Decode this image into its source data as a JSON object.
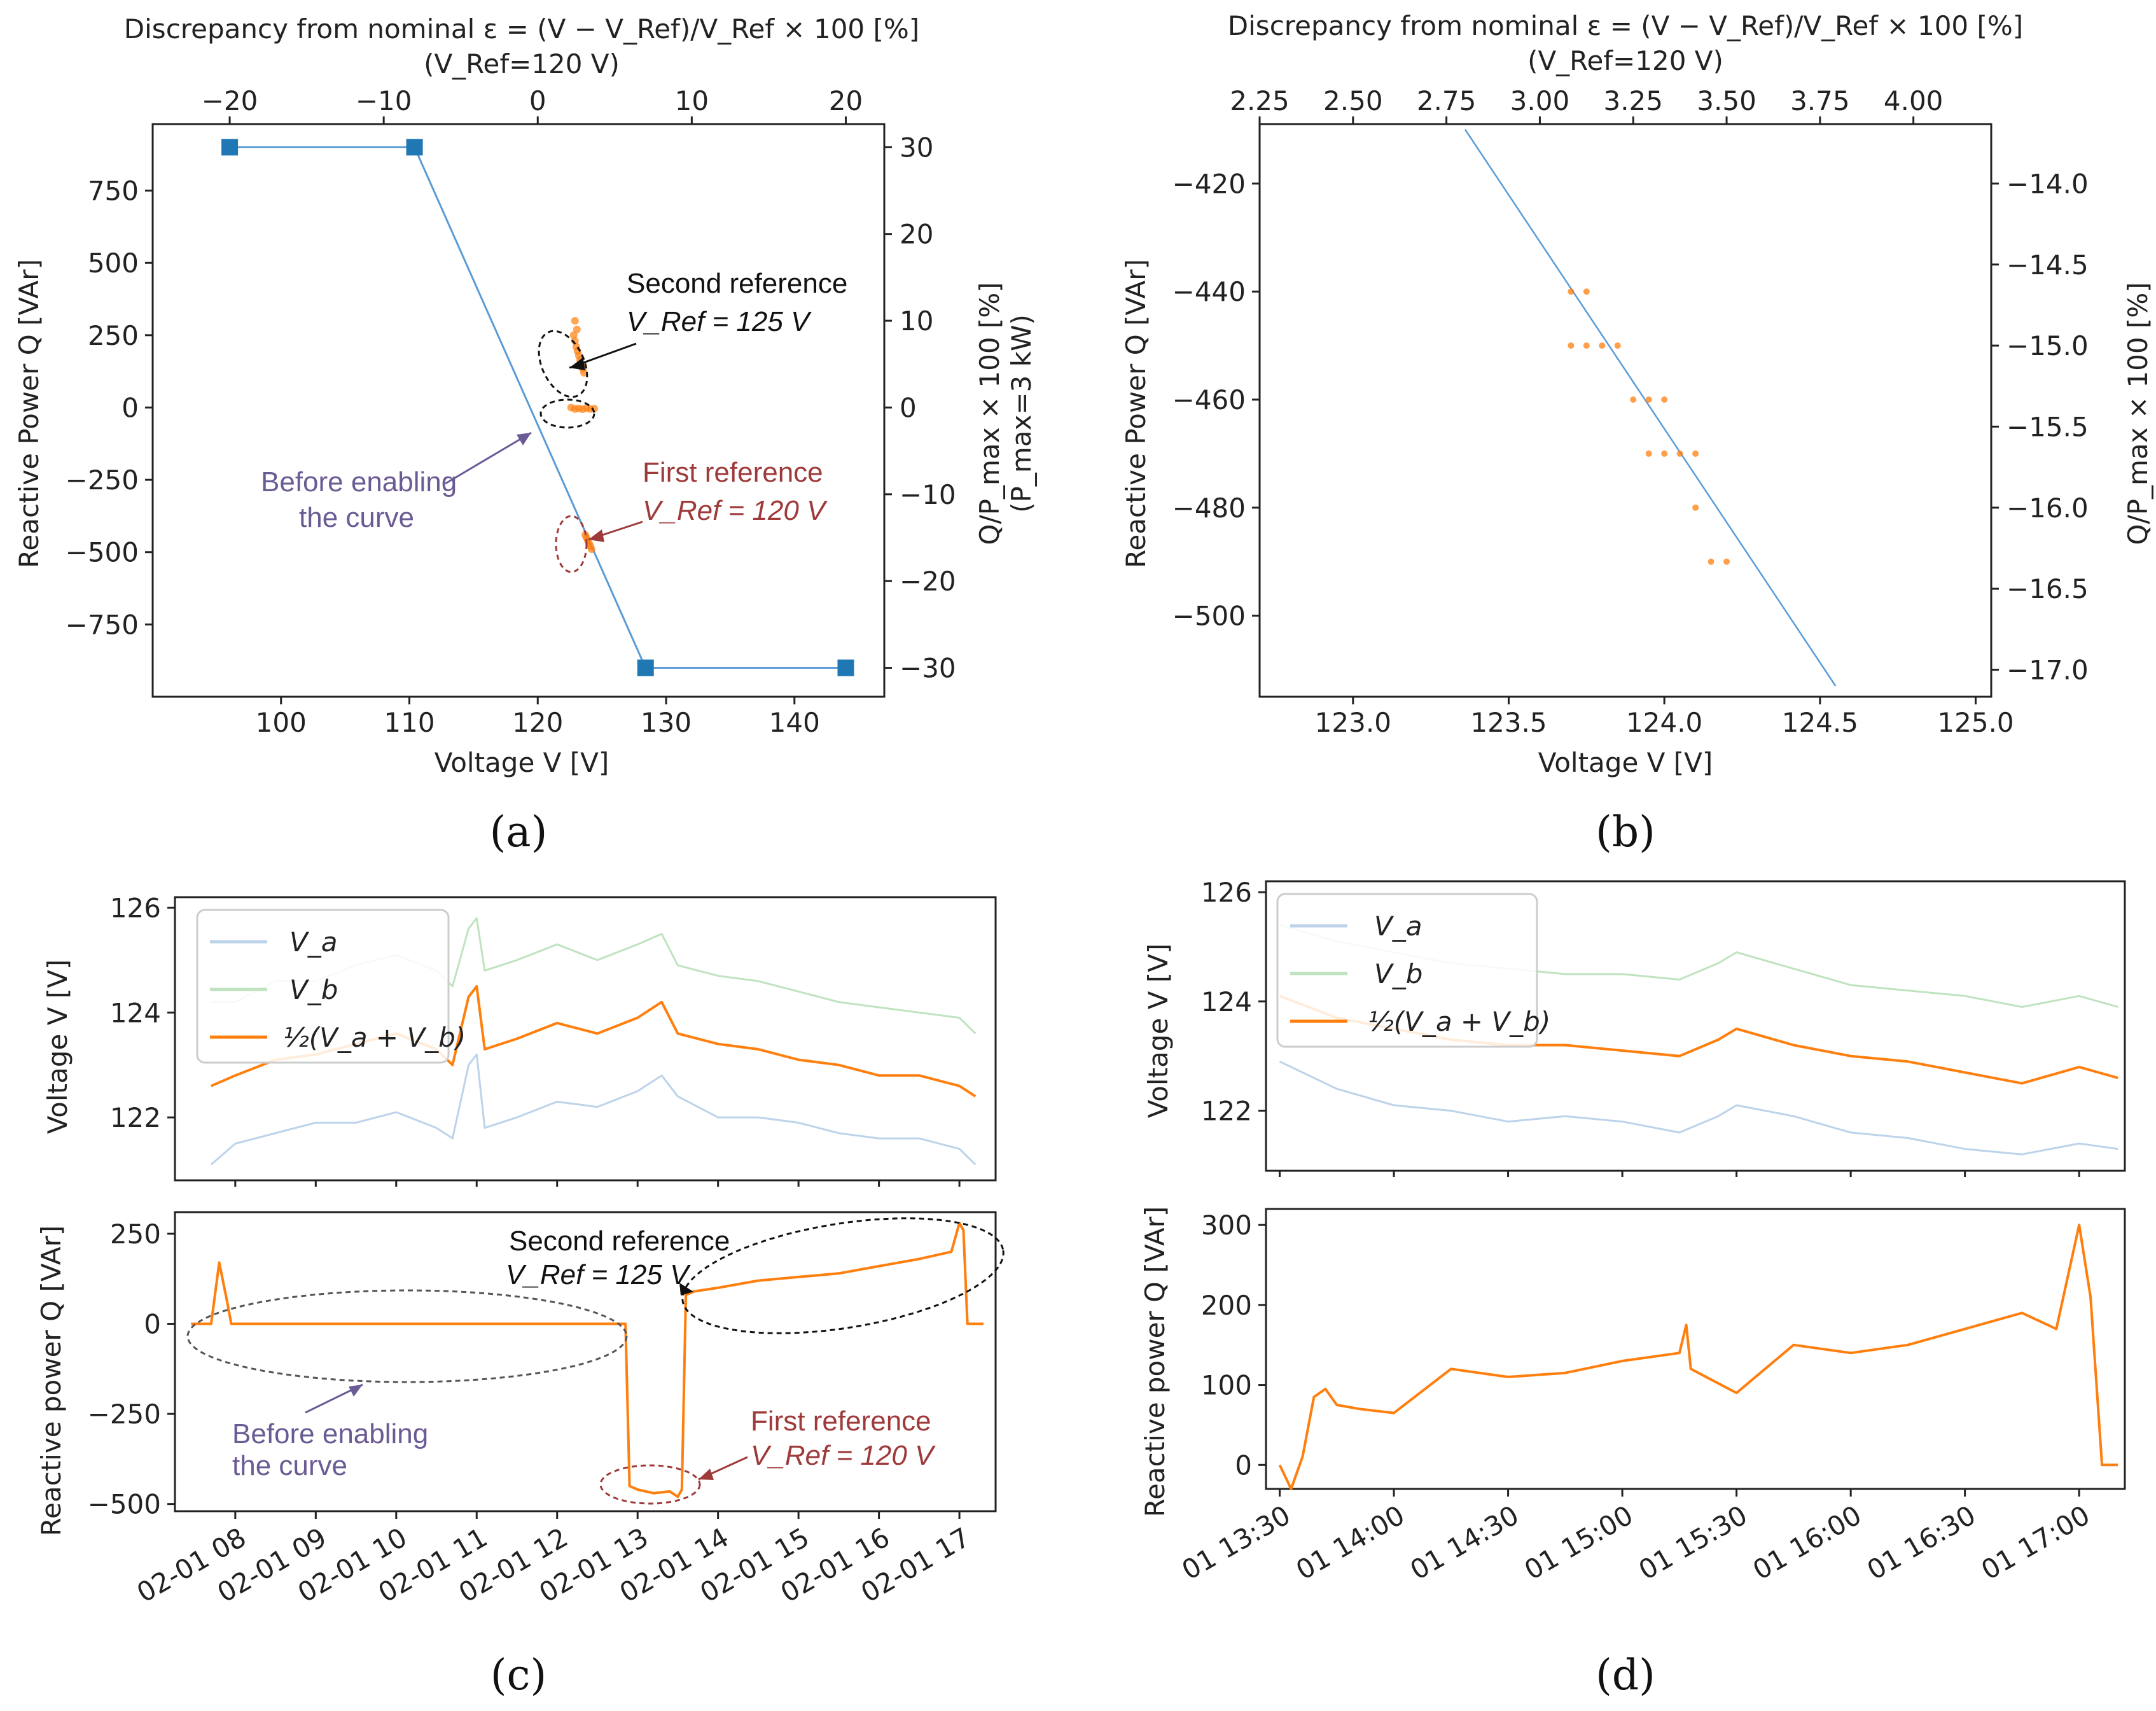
{
  "colors": {
    "curve": "#5b9bd5",
    "marker": "#1f77b4",
    "orange": "#ff7f0e",
    "va": "#bcd3ea",
    "vb": "#bfe3bf",
    "ann_purple": "#6b5b95",
    "ann_red": "#9e3a3a",
    "axis": "#222222"
  },
  "panel_labels": {
    "a": "(a)",
    "b": "(b)",
    "c": "(c)",
    "d": "(d)"
  },
  "chart_data": [
    {
      "id": "a",
      "type": "line",
      "title": "Discrepancy from nominal ε = (V − V_Ref)/V_Ref × 100 [%]",
      "subtitle": "(V_Ref=120 V)",
      "xlabel": "Voltage V [V]",
      "ylabel": "Reactive Power Q [VAr]",
      "y2label": "Q/P_max × 100 [%]",
      "y2label2": "(P_max=3 kW)",
      "xlim": [
        90,
        147
      ],
      "ylim": [
        -1000,
        980
      ],
      "xticks": [
        100,
        110,
        120,
        130,
        140
      ],
      "yticks": [
        -750,
        -500,
        -250,
        0,
        250,
        500,
        750
      ],
      "top_ticks": [
        -20,
        -10,
        0,
        10,
        20
      ],
      "right_ticks": [
        30,
        20,
        10,
        0,
        -10,
        -20,
        -30
      ],
      "curve": {
        "x": [
          96,
          110.4,
          128.4,
          144
        ],
        "y": [
          900,
          900,
          -900,
          -900
        ]
      },
      "markers": {
        "x": [
          96,
          110.4,
          128.4,
          144
        ],
        "y": [
          900,
          900,
          -900,
          -900
        ]
      },
      "scatter": [
        {
          "x": 122.8,
          "y": 250
        },
        {
          "x": 122.9,
          "y": 230
        },
        {
          "x": 123.0,
          "y": 210
        },
        {
          "x": 123.1,
          "y": 195
        },
        {
          "x": 123.2,
          "y": 180
        },
        {
          "x": 123.3,
          "y": 165
        },
        {
          "x": 123.4,
          "y": 150
        },
        {
          "x": 123.5,
          "y": 135
        },
        {
          "x": 123.6,
          "y": 120
        },
        {
          "x": 122.9,
          "y": 300
        },
        {
          "x": 123.05,
          "y": 270
        },
        {
          "x": 122.6,
          "y": 0
        },
        {
          "x": 122.9,
          "y": -5
        },
        {
          "x": 123.2,
          "y": -3
        },
        {
          "x": 123.5,
          "y": -6
        },
        {
          "x": 123.8,
          "y": -2
        },
        {
          "x": 124.1,
          "y": -5
        },
        {
          "x": 124.4,
          "y": -4
        },
        {
          "x": 123.7,
          "y": -440
        },
        {
          "x": 123.8,
          "y": -450
        },
        {
          "x": 123.9,
          "y": -460
        },
        {
          "x": 124.0,
          "y": -470
        },
        {
          "x": 124.1,
          "y": -480
        },
        {
          "x": 124.2,
          "y": -490
        }
      ],
      "annotations": {
        "second_ref": "Second reference",
        "second_ref_v": "V_Ref = 125 V",
        "first_ref": "First reference",
        "first_ref_v": "V_Ref = 120 V",
        "before_1": "Before enabling",
        "before_2": "the curve"
      }
    },
    {
      "id": "b",
      "type": "scatter",
      "title": "Discrepancy from nominal ε = (V − V_Ref)/V_Ref × 100 [%]",
      "subtitle": "(V_Ref=120 V)",
      "xlabel": "Voltage V [V]",
      "ylabel": "Reactive Power Q [VAr]",
      "y2label": "Q/P_max × 100 [%]",
      "xlim": [
        122.7,
        125.05
      ],
      "ylim": [
        -515,
        -409
      ],
      "xticks": [
        123.0,
        123.5,
        124.0,
        124.5,
        125.0
      ],
      "yticks": [
        -420,
        -440,
        -460,
        -480,
        -500
      ],
      "top_ticks": [
        2.25,
        2.5,
        2.75,
        3.0,
        3.25,
        3.5,
        3.75,
        4.0
      ],
      "right_ticks": [
        -14.0,
        -14.5,
        -15.0,
        -15.5,
        -16.0,
        -16.5,
        -17.0
      ],
      "line": {
        "x": [
          123.36,
          124.55
        ],
        "y": [
          -410,
          -513
        ]
      },
      "points": [
        {
          "x": 123.7,
          "y": -440
        },
        {
          "x": 123.75,
          "y": -440
        },
        {
          "x": 123.7,
          "y": -450
        },
        {
          "x": 123.75,
          "y": -450
        },
        {
          "x": 123.8,
          "y": -450
        },
        {
          "x": 123.85,
          "y": -450
        },
        {
          "x": 123.9,
          "y": -460
        },
        {
          "x": 123.95,
          "y": -460
        },
        {
          "x": 124.0,
          "y": -460
        },
        {
          "x": 123.95,
          "y": -470
        },
        {
          "x": 124.0,
          "y": -470
        },
        {
          "x": 124.05,
          "y": -470
        },
        {
          "x": 124.1,
          "y": -470
        },
        {
          "x": 124.1,
          "y": -480
        },
        {
          "x": 124.15,
          "y": -490
        },
        {
          "x": 124.2,
          "y": -490
        }
      ]
    },
    {
      "id": "c-voltage",
      "type": "line",
      "ylabel": "Voltage V [V]",
      "ylim": [
        120.8,
        126.2
      ],
      "yticks": [
        122,
        124,
        126
      ],
      "legend": [
        "V_a",
        "V_b",
        "½(V_a + V_b)"
      ],
      "x": [
        7.7,
        8.0,
        8.5,
        9.0,
        9.5,
        10.0,
        10.5,
        10.7,
        10.9,
        11.0,
        11.1,
        11.5,
        12.0,
        12.5,
        13.0,
        13.3,
        13.5,
        14.0,
        14.5,
        15.0,
        15.5,
        16.0,
        16.5,
        17.0,
        17.2
      ],
      "series": [
        {
          "name": "V_a",
          "values": [
            121.1,
            121.5,
            121.7,
            121.9,
            121.9,
            122.1,
            121.8,
            121.6,
            123.0,
            123.2,
            121.8,
            122.0,
            122.3,
            122.2,
            122.5,
            122.8,
            122.4,
            122.0,
            122.0,
            121.9,
            121.7,
            121.6,
            121.6,
            121.4,
            121.1
          ]
        },
        {
          "name": "V_b",
          "values": [
            124.2,
            124.2,
            124.6,
            124.6,
            124.9,
            125.1,
            124.8,
            124.5,
            125.6,
            125.8,
            124.8,
            125.0,
            125.3,
            125.0,
            125.3,
            125.5,
            124.9,
            124.7,
            124.6,
            124.4,
            124.2,
            124.1,
            124.0,
            123.9,
            123.6
          ]
        },
        {
          "name": "½(V_a + V_b)",
          "values": [
            122.6,
            122.8,
            123.1,
            123.2,
            123.4,
            123.6,
            123.3,
            123.0,
            124.3,
            124.5,
            123.3,
            123.5,
            123.8,
            123.6,
            123.9,
            124.2,
            123.6,
            123.4,
            123.3,
            123.1,
            123.0,
            122.8,
            122.8,
            122.6,
            122.4
          ]
        }
      ]
    },
    {
      "id": "c-reactive",
      "type": "line",
      "ylabel": "Reactive power Q [VAr]",
      "ylim": [
        -520,
        310
      ],
      "yticks": [
        250,
        0,
        -250,
        -500
      ],
      "xticks": [
        "02-01 08",
        "02-01 09",
        "02-01 10",
        "02-01 11",
        "02-01 12",
        "02-01 13",
        "02-01 14",
        "02-01 15",
        "02-01 16",
        "02-01 17"
      ],
      "x": [
        7.45,
        7.7,
        7.8,
        7.9,
        7.95,
        8.0,
        9.0,
        10.0,
        11.0,
        12.0,
        12.55,
        12.85,
        12.9,
        13.0,
        13.2,
        13.4,
        13.5,
        13.55,
        13.6,
        13.7,
        14.0,
        14.5,
        15.0,
        15.5,
        16.0,
        16.5,
        16.9,
        17.0,
        17.05,
        17.1,
        17.3
      ],
      "series": [
        {
          "name": "Q",
          "values": [
            0,
            0,
            170,
            60,
            0,
            0,
            0,
            0,
            0,
            0,
            0,
            0,
            -450,
            -460,
            -470,
            -465,
            -480,
            -460,
            80,
            90,
            100,
            120,
            130,
            140,
            160,
            180,
            200,
            280,
            260,
            0,
            0
          ]
        }
      ],
      "annotations": {
        "second_ref": "Second reference",
        "second_ref_v": "V_Ref = 125 V",
        "first_ref": "First reference",
        "first_ref_v": "V_Ref = 120 V",
        "before_1": "Before enabling",
        "before_2": "the curve"
      }
    },
    {
      "id": "d-voltage",
      "type": "line",
      "ylabel": "Voltage V [V]",
      "ylim": [
        120.9,
        126.2
      ],
      "yticks": [
        122,
        124,
        126
      ],
      "legend": [
        "V_a",
        "V_b",
        "½(V_a + V_b)"
      ],
      "x": [
        13.5,
        13.75,
        14.0,
        14.25,
        14.5,
        14.75,
        15.0,
        15.25,
        15.42,
        15.5,
        15.75,
        16.0,
        16.25,
        16.5,
        16.75,
        17.0,
        17.17
      ],
      "series": [
        {
          "name": "V_a",
          "values": [
            122.9,
            122.4,
            122.1,
            122.0,
            121.8,
            121.9,
            121.8,
            121.6,
            121.9,
            122.1,
            121.9,
            121.6,
            121.5,
            121.3,
            121.2,
            121.4,
            121.3
          ]
        },
        {
          "name": "V_b",
          "values": [
            125.4,
            125.1,
            124.9,
            124.7,
            124.6,
            124.5,
            124.5,
            124.4,
            124.7,
            124.9,
            124.6,
            124.3,
            124.2,
            124.1,
            123.9,
            124.1,
            123.9
          ]
        },
        {
          "name": "½(V_a + V_b)",
          "values": [
            124.1,
            123.7,
            123.5,
            123.3,
            123.2,
            123.2,
            123.1,
            123.0,
            123.3,
            123.5,
            123.2,
            123.0,
            122.9,
            122.7,
            122.5,
            122.8,
            122.6
          ]
        }
      ]
    },
    {
      "id": "d-reactive",
      "type": "line",
      "ylabel": "Reactive power Q [VAr]",
      "ylim": [
        -30,
        320
      ],
      "yticks": [
        300,
        200,
        100,
        0
      ],
      "xticks": [
        "01 13:30",
        "01 14:00",
        "01 14:30",
        "01 15:00",
        "01 15:30",
        "01 16:00",
        "01 16:30",
        "01 17:00"
      ],
      "x": [
        13.5,
        13.55,
        13.6,
        13.65,
        13.7,
        13.75,
        13.85,
        14.0,
        14.25,
        14.5,
        14.75,
        15.0,
        15.25,
        15.28,
        15.3,
        15.5,
        15.75,
        16.0,
        16.25,
        16.5,
        16.75,
        16.9,
        17.0,
        17.05,
        17.1,
        17.17
      ],
      "series": [
        {
          "name": "Q",
          "values": [
            0,
            -30,
            10,
            85,
            95,
            75,
            70,
            65,
            120,
            110,
            115,
            130,
            140,
            175,
            120,
            90,
            150,
            140,
            150,
            170,
            190,
            170,
            300,
            210,
            0,
            0
          ]
        }
      ]
    }
  ]
}
